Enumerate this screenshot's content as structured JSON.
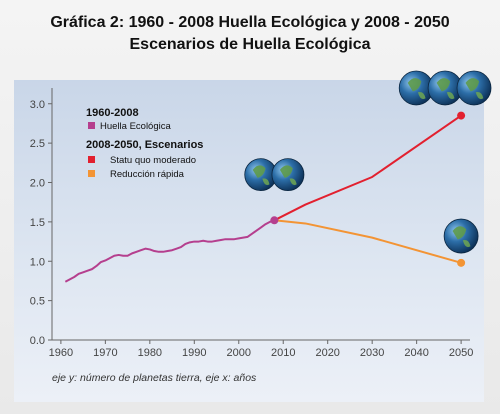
{
  "title_line1": "Gráfica 2: 1960 - 2008 Huella Ecológica y 2008 - 2050",
  "title_line2": "Escenarios de Huella Ecológica",
  "caption": "eje y: número de planetas tierra, eje x: años",
  "chart_data": {
    "type": "line",
    "xlim": [
      1958,
      2052
    ],
    "ylim": [
      0,
      3.2
    ],
    "x_ticks": [
      1960,
      1970,
      1980,
      1990,
      2000,
      2010,
      2020,
      2030,
      2040,
      2050
    ],
    "y_ticks": [
      "0.0",
      "0.5",
      "1.0",
      "1.5",
      "2.0",
      "2.5",
      "3.0"
    ],
    "grid": false,
    "legend": {
      "group1_title": "1960-2008",
      "group1_items": [
        {
          "label": "Huella Ecológica",
          "color": "#b53f8e"
        }
      ],
      "group2_title": "2008-2050, Escenarios",
      "group2_items": [
        {
          "label": "Statu quo moderado",
          "color": "#e2202f"
        },
        {
          "label": "Reducción rápida",
          "color": "#f39434"
        }
      ]
    },
    "series": [
      {
        "name": "Huella Ecológica",
        "color": "#b53f8e",
        "points": [
          [
            1961,
            0.74
          ],
          [
            1962,
            0.77
          ],
          [
            1963,
            0.8
          ],
          [
            1964,
            0.84
          ],
          [
            1965,
            0.86
          ],
          [
            1966,
            0.88
          ],
          [
            1967,
            0.9
          ],
          [
            1968,
            0.94
          ],
          [
            1969,
            0.99
          ],
          [
            1970,
            1.01
          ],
          [
            1971,
            1.04
          ],
          [
            1972,
            1.07
          ],
          [
            1973,
            1.08
          ],
          [
            1974,
            1.07
          ],
          [
            1975,
            1.07
          ],
          [
            1976,
            1.1
          ],
          [
            1977,
            1.12
          ],
          [
            1978,
            1.14
          ],
          [
            1979,
            1.16
          ],
          [
            1980,
            1.15
          ],
          [
            1981,
            1.13
          ],
          [
            1982,
            1.12
          ],
          [
            1983,
            1.12
          ],
          [
            1984,
            1.13
          ],
          [
            1985,
            1.14
          ],
          [
            1986,
            1.16
          ],
          [
            1987,
            1.18
          ],
          [
            1988,
            1.22
          ],
          [
            1989,
            1.24
          ],
          [
            1990,
            1.25
          ],
          [
            1991,
            1.25
          ],
          [
            1992,
            1.26
          ],
          [
            1993,
            1.25
          ],
          [
            1994,
            1.25
          ],
          [
            1995,
            1.26
          ],
          [
            1996,
            1.27
          ],
          [
            1997,
            1.28
          ],
          [
            1998,
            1.28
          ],
          [
            1999,
            1.28
          ],
          [
            2000,
            1.29
          ],
          [
            2001,
            1.3
          ],
          [
            2002,
            1.31
          ],
          [
            2003,
            1.35
          ],
          [
            2004,
            1.39
          ],
          [
            2005,
            1.43
          ],
          [
            2006,
            1.47
          ],
          [
            2007,
            1.5
          ],
          [
            2008,
            1.52
          ]
        ]
      },
      {
        "name": "Statu quo moderado",
        "color": "#e2202f",
        "points": [
          [
            2008,
            1.52
          ],
          [
            2015,
            1.72
          ],
          [
            2030,
            2.07
          ],
          [
            2050,
            2.85
          ]
        ]
      },
      {
        "name": "Reducción rápida",
        "color": "#f39434",
        "points": [
          [
            2008,
            1.52
          ],
          [
            2015,
            1.48
          ],
          [
            2030,
            1.3
          ],
          [
            2050,
            0.98
          ]
        ]
      }
    ],
    "markers": [
      {
        "x": 2008,
        "y": 1.52,
        "color": "#b53f8e"
      },
      {
        "x": 2050,
        "y": 2.85,
        "color": "#e2202f"
      },
      {
        "x": 2050,
        "y": 0.98,
        "color": "#f39434"
      }
    ],
    "globe_counts": [
      2,
      3,
      1
    ]
  }
}
